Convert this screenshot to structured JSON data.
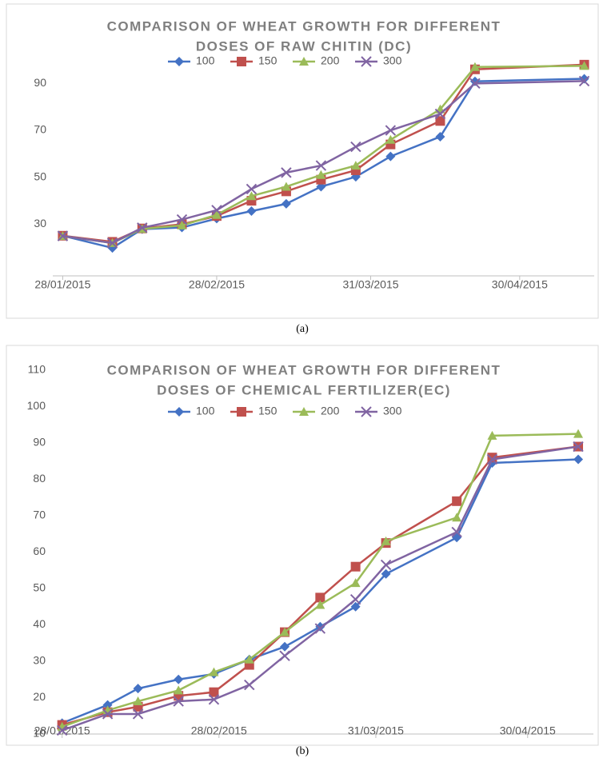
{
  "chart_data": [
    {
      "type": "line",
      "title": [
        "COMPARISON OF WHEAT GROWTH FOR DIFFERENT",
        "DOSES OF RAW CHITIN (DC)"
      ],
      "caption": "(a)",
      "x": [
        "2015-01-28",
        "2015-02-07",
        "2015-02-13",
        "2015-02-21",
        "2015-02-28",
        "2015-03-07",
        "2015-03-14",
        "2015-03-21",
        "2015-03-28",
        "2015-04-04",
        "2015-04-14",
        "2015-04-21",
        "2015-05-13"
      ],
      "xlim": [
        "2015-01-26",
        "2015-05-15"
      ],
      "xticks": [
        {
          "value": "2015-01-28",
          "label": "28/01/2015"
        },
        {
          "value": "2015-02-28",
          "label": "28/02/2015"
        },
        {
          "value": "2015-03-31",
          "label": "31/03/2015"
        },
        {
          "value": "2015-04-30",
          "label": "30/04/2015"
        }
      ],
      "ylim": [
        8,
        100
      ],
      "yticks": [
        30,
        50,
        70,
        90
      ],
      "grid": false,
      "legend": "top",
      "series": [
        {
          "name": "100",
          "color": "#4472c4",
          "marker": "diamond",
          "values": [
            25.1,
            19.9,
            27.9,
            28.6,
            32.4,
            35.6,
            38.7,
            46,
            50.2,
            58.9,
            67.3,
            90.9,
            92
          ]
        },
        {
          "name": "150",
          "color": "#c0504d",
          "marker": "square",
          "values": [
            25.1,
            22.5,
            28.2,
            30,
            33.5,
            40,
            44,
            49,
            53,
            64,
            74,
            96,
            98
          ]
        },
        {
          "name": "200",
          "color": "#9bbb59",
          "marker": "triangle",
          "values": [
            25,
            22,
            28,
            29.5,
            34,
            42,
            46,
            51,
            55,
            66,
            79,
            97,
            97.5
          ]
        },
        {
          "name": "300",
          "color": "#8064a2",
          "marker": "x",
          "values": [
            25,
            22,
            28.5,
            32,
            36,
            45,
            52,
            55,
            63,
            70,
            77,
            90,
            91
          ]
        }
      ]
    },
    {
      "type": "line",
      "title": [
        "COMPARISON OF WHEAT GROWTH FOR DIFFERENT",
        "DOSES OF CHEMICAL FERTILIZER(EC)"
      ],
      "caption": "(b)",
      "x": [
        "2015-01-28",
        "2015-02-06",
        "2015-02-12",
        "2015-02-20",
        "2015-02-27",
        "2015-03-06",
        "2015-03-13",
        "2015-03-20",
        "2015-03-27",
        "2015-04-02",
        "2015-04-16",
        "2015-04-23",
        "2015-05-10"
      ],
      "xlim": [
        "2015-01-26",
        "2015-05-13"
      ],
      "xticks": [
        {
          "value": "2015-01-28",
          "label": "28/01/2015"
        },
        {
          "value": "2015-02-28",
          "label": "28/02/2015"
        },
        {
          "value": "2015-03-31",
          "label": "31/03/2015"
        },
        {
          "value": "2015-04-30",
          "label": "30/04/2015"
        }
      ],
      "ylim": [
        10,
        110
      ],
      "yticks": [
        10,
        20,
        30,
        40,
        50,
        60,
        70,
        80,
        90,
        100,
        110
      ],
      "grid": false,
      "legend": "top",
      "series": [
        {
          "name": "100",
          "color": "#4472c4",
          "marker": "diamond",
          "values": [
            13,
            18,
            22.5,
            25,
            26.5,
            30.5,
            34,
            39.5,
            45,
            54,
            64,
            84.5,
            85.5
          ]
        },
        {
          "name": "150",
          "color": "#c0504d",
          "marker": "square",
          "values": [
            12.5,
            16,
            17.5,
            20.5,
            21.5,
            29,
            38,
            47.5,
            56,
            62.5,
            74,
            86,
            89
          ]
        },
        {
          "name": "200",
          "color": "#9bbb59",
          "marker": "triangle",
          "values": [
            12,
            16.5,
            19,
            22,
            27,
            30.5,
            38,
            45.5,
            51.5,
            63,
            69.5,
            92,
            92.5
          ]
        },
        {
          "name": "300",
          "color": "#8064a2",
          "marker": "x",
          "values": [
            11,
            15.5,
            15.5,
            19,
            19.5,
            23.5,
            31.5,
            39,
            47,
            56.5,
            65.5,
            85.5,
            89
          ]
        }
      ]
    }
  ]
}
